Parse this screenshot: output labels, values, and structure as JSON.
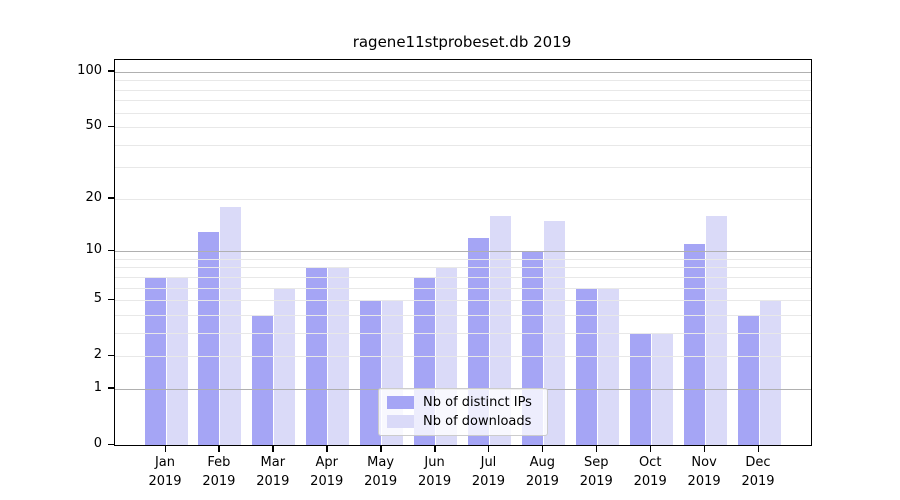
{
  "title": "ragene11stprobeset.db 2019",
  "chart_data": {
    "type": "bar",
    "title": "ragene11stprobeset.db 2019",
    "categories": [
      "Jan",
      "Feb",
      "Mar",
      "Apr",
      "May",
      "Jun",
      "Jul",
      "Aug",
      "Sep",
      "Oct",
      "Nov",
      "Dec"
    ],
    "category_year": "2019",
    "series": [
      {
        "name": "Nb of distinct IPs",
        "color": "#a5a5f5",
        "values": [
          7,
          13,
          4,
          8,
          5,
          7,
          12,
          10,
          6,
          3,
          11,
          4
        ]
      },
      {
        "name": "Nb of downloads",
        "color": "#dadaf8",
        "values": [
          7,
          18,
          6,
          8,
          5,
          8,
          16,
          15,
          6,
          3,
          16,
          5
        ]
      }
    ],
    "xlabel": "",
    "ylabel": "",
    "y_scale": "log1p",
    "ylim": [
      0,
      116
    ],
    "y_ticks": [
      0,
      1,
      2,
      5,
      10,
      20,
      50,
      100
    ],
    "y_major_gridlines": [
      1,
      10,
      100
    ],
    "y_minor_gridlines": [
      2,
      3,
      4,
      5,
      6,
      7,
      8,
      9,
      20,
      30,
      40,
      50,
      60,
      70,
      80,
      90
    ],
    "grid": true,
    "legend_position": "lower center",
    "colors": {
      "bar_distinct_ips": "#a5a5f5",
      "bar_downloads": "#dadaf8",
      "major_grid": "#b0b0b0",
      "minor_grid": "#e8e8e8",
      "axis": "#000000",
      "text": "#000000",
      "legend_border": "#cccccc",
      "background": "#ffffff"
    }
  }
}
